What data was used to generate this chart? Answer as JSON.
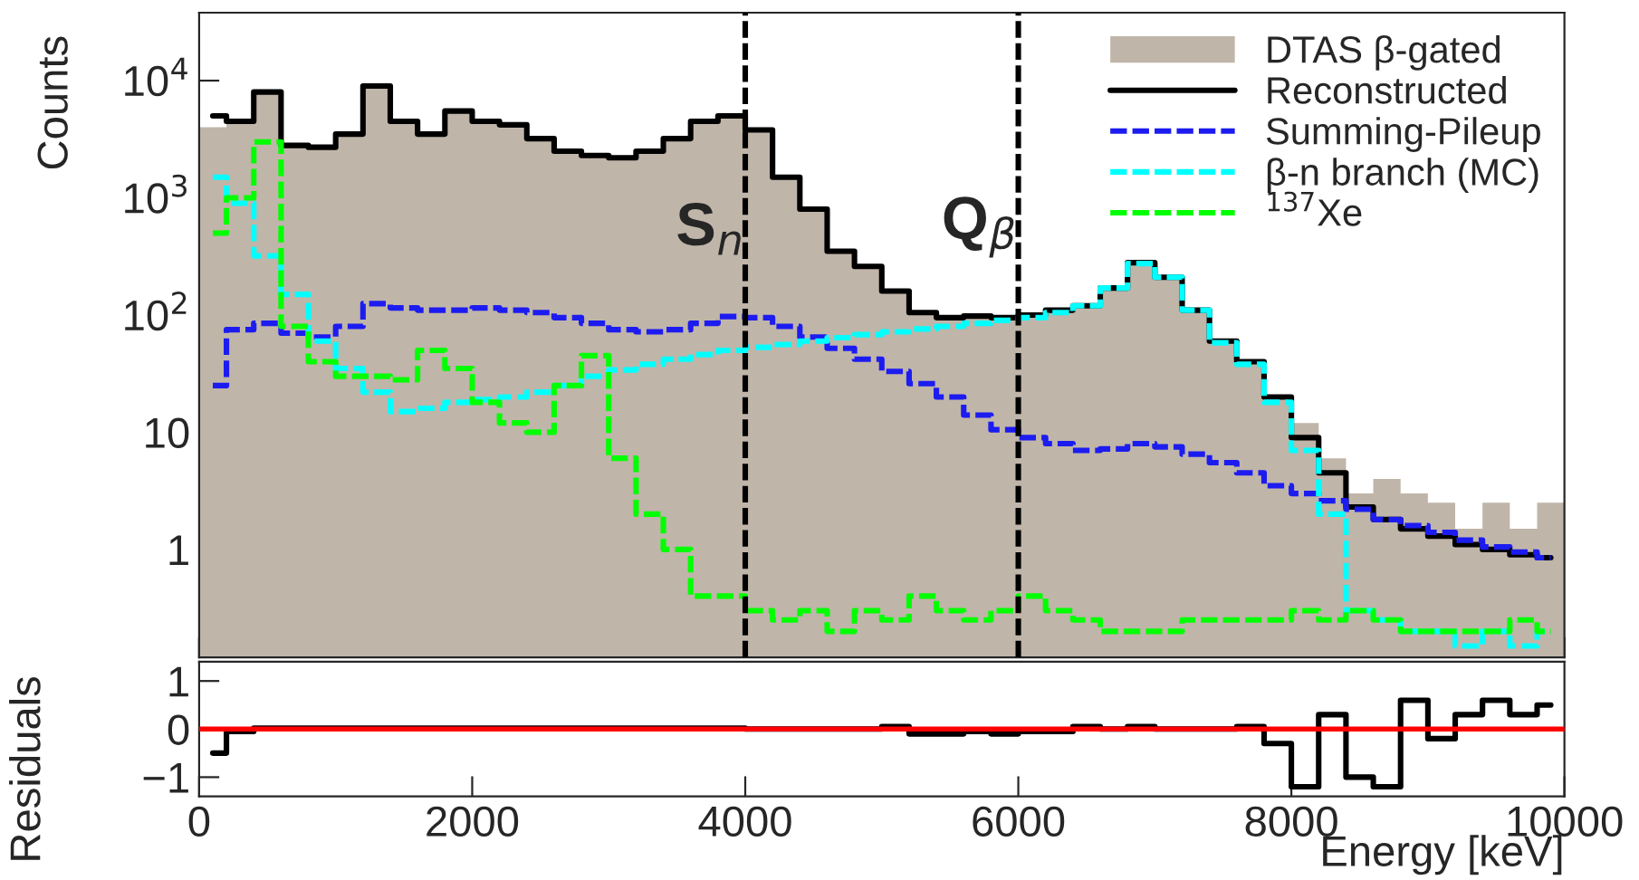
{
  "chart_data": [
    {
      "type": "histogram",
      "ylabel": "Counts",
      "log": true,
      "legend": "top right",
      "tick_labels": "y",
      "bins": [
        0,
        200,
        400,
        600,
        800,
        1000,
        1200,
        1400,
        1600,
        1800,
        2000,
        2200,
        2400,
        2600,
        2800,
        3000,
        3200,
        3400,
        3600,
        3800,
        4000,
        4200,
        4400,
        4600,
        4800,
        5000,
        5200,
        5400,
        5600,
        5800,
        6000,
        6200,
        6400,
        6600,
        6800,
        7000,
        7200,
        7400,
        7600,
        7800,
        8000,
        8200,
        8400,
        8600,
        8800,
        9000,
        9200,
        9400,
        9600,
        9800,
        10000
      ],
      "xlim": [
        0,
        10000
      ],
      "xticks": [
        0,
        2000,
        4000,
        6000,
        8000,
        10000
      ],
      "x": [
        100,
        300,
        500,
        700,
        900,
        1100,
        1300,
        1500,
        1700,
        1900,
        2100,
        2300,
        2500,
        2700,
        2900,
        3100,
        3300,
        3500,
        3700,
        3900,
        4100,
        4300,
        4500,
        4700,
        4900,
        5100,
        5300,
        5500,
        5700,
        5900,
        6100,
        6300,
        6500,
        6700,
        6900,
        7100,
        7300,
        7500,
        7700,
        7900,
        8100,
        8300,
        8500,
        8700,
        8900,
        9100,
        9300,
        9500,
        9700,
        9900
      ],
      "ylim": [
        0.12,
        38000
      ],
      "yticks": [
        1,
        10,
        {
          "value": 100,
          "label": "10$^{2}$"
        },
        {
          "value": 1000,
          "label": "10$^{3}$"
        },
        {
          "value": 10000,
          "label": "10$^{4}$"
        }
      ],
      "series": [
        {
          "name": "DTAS β-gated",
          "color": "#c0b5a9",
          "values": [
            4000,
            4500,
            8000,
            2800,
            2700,
            3500,
            9000,
            4500,
            3500,
            5500,
            4500,
            4200,
            3200,
            2500,
            2300,
            2200,
            2500,
            3200,
            4500,
            5000,
            3800,
            1500,
            800,
            350,
            260,
            160,
            105,
            95,
            98,
            95,
            100,
            110,
            120,
            170,
            280,
            210,
            110,
            60,
            40,
            20,
            12,
            6,
            3,
            4,
            3,
            2.5,
            1.5,
            2.5,
            1.5,
            2.5
          ]
        },
        {
          "name": "Reconstructed",
          "type": "step",
          "line_style": "solid",
          "color": "#000000",
          "values": [
            5000,
            4500,
            8000,
            2800,
            2700,
            3500,
            9000,
            4500,
            3500,
            5500,
            4500,
            4200,
            3200,
            2500,
            2300,
            2200,
            2500,
            3200,
            4500,
            5000,
            3800,
            1500,
            800,
            350,
            260,
            160,
            105,
            95,
            98,
            95,
            100,
            110,
            120,
            170,
            280,
            210,
            110,
            60,
            40,
            20,
            9,
            4.5,
            2.3,
            1.8,
            1.5,
            1.3,
            1.1,
            1.0,
            0.9,
            0.85
          ]
        },
        {
          "name": "Summing-Pileup",
          "type": "step",
          "line_style": "dashed",
          "color": "#1c1cf0",
          "values": [
            25,
            75,
            85,
            70,
            65,
            80,
            125,
            115,
            110,
            110,
            115,
            110,
            105,
            95,
            85,
            75,
            72,
            75,
            85,
            97,
            95,
            80,
            65,
            52,
            42,
            33,
            26,
            20,
            14,
            10.5,
            9,
            8,
            7,
            7.2,
            8,
            7.5,
            6.5,
            5.5,
            4.5,
            3.5,
            3,
            2.6,
            2.2,
            1.8,
            1.6,
            1.4,
            1.2,
            1.05,
            0.95,
            0.85
          ]
        },
        {
          "name": "β-n branch (MC)",
          "type": "step",
          "line_style": "dashed",
          "color": "#00ffff",
          "values": [
            1500,
            900,
            320,
            150,
            60,
            35,
            22,
            15,
            16,
            18,
            19,
            20,
            22,
            25,
            30,
            34,
            38,
            42,
            46,
            50,
            53,
            56,
            60,
            64,
            68,
            72,
            76,
            80,
            85,
            90,
            95,
            105,
            120,
            170,
            275,
            210,
            110,
            58,
            38,
            18,
            7,
            2,
            0.3,
            0.25,
            0.2,
            0.2,
            0.15,
            0.2,
            0.15,
            0.2
          ]
        },
        {
          "name": "$^{137}$Xe",
          "type": "step",
          "line_style": "dashed",
          "color": "#00ff00",
          "values": [
            500,
            1000,
            3000,
            80,
            40,
            30,
            30,
            28,
            50,
            35,
            18,
            12,
            10,
            25,
            45,
            6,
            2,
            1,
            0.4,
            0.4,
            0.3,
            0.25,
            0.3,
            0.2,
            0.3,
            0.25,
            0.4,
            0.3,
            0.25,
            0.3,
            0.4,
            0.3,
            0.25,
            0.2,
            0.2,
            0.2,
            0.25,
            0.25,
            0.25,
            0.25,
            0.3,
            0.25,
            0.3,
            0.25,
            0.2,
            0.2,
            0.2,
            0.2,
            0.25,
            0.2
          ]
        }
      ],
      "ref_lines": [
        {
          "axis": "x",
          "value": 4000,
          "label": "S$_{n}$",
          "color": "#000000",
          "line_style": "dashed"
        },
        {
          "axis": "x",
          "value": 6000,
          "label": "Q$_{β}$",
          "color": "#000000",
          "line_style": "dashed"
        }
      ]
    },
    {
      "type": "step",
      "ylabel": "Residuals",
      "xlabel": "Energy [keV]",
      "x": [
        100,
        300,
        500,
        700,
        900,
        1100,
        1300,
        1500,
        1700,
        1900,
        2100,
        2300,
        2500,
        2700,
        2900,
        3100,
        3300,
        3500,
        3700,
        3900,
        4100,
        4300,
        4500,
        4700,
        4900,
        5100,
        5300,
        5500,
        5700,
        5900,
        6100,
        6300,
        6500,
        6700,
        6900,
        7100,
        7300,
        7500,
        7700,
        7900,
        8100,
        8300,
        8500,
        8700,
        8900,
        9100,
        9300,
        9500,
        9700,
        9900
      ],
      "xlim": [
        0,
        10000
      ],
      "xticks": [
        0,
        2000,
        4000,
        6000,
        8000,
        10000
      ],
      "ylim": [
        -1.4,
        1.4
      ],
      "yticks": [
        {
          "value": -1,
          "label": "−1"
        },
        0,
        1
      ],
      "series": [
        {
          "color": "#000000",
          "values": [
            -0.5,
            -0.05,
            0.02,
            0.02,
            0.02,
            0.02,
            0.02,
            0.02,
            0.02,
            0.02,
            0.02,
            0.02,
            0.02,
            0.02,
            0.02,
            0.02,
            0.02,
            0.02,
            0.02,
            0.02,
            0.0,
            0.0,
            0.0,
            0.0,
            0.0,
            0.05,
            -0.1,
            -0.1,
            -0.05,
            -0.1,
            -0.05,
            -0.05,
            0.05,
            0.0,
            0.05,
            0.0,
            0.0,
            0.0,
            0.05,
            -0.3,
            -1.2,
            0.3,
            -1.0,
            -1.2,
            0.6,
            -0.2,
            0.3,
            0.6,
            0.3,
            0.5
          ]
        }
      ],
      "ref_lines": [
        {
          "axis": "y",
          "value": 0,
          "color": "#ff0000",
          "line_style": "solid"
        }
      ]
    }
  ]
}
